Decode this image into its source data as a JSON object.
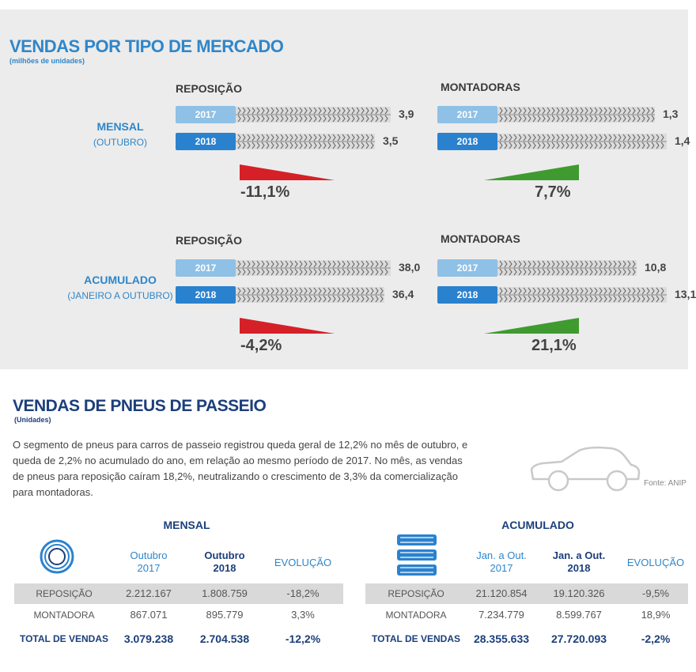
{
  "market": {
    "title": "VENDAS POR TIPO DE MERCADO",
    "unit": "(milhões de unidades)",
    "panels": [
      {
        "row": "MENSAL",
        "row_sub": "(OUTUBRO)",
        "left_title": "REPOSIÇÃO",
        "right_title": "MONTADORAS"
      },
      {
        "row": "ACUMULADO",
        "row_sub": "(JANEIRO A OUTUBRO)",
        "left_title": "REPOSIÇÃO",
        "right_title": "MONTADORAS"
      }
    ],
    "year_labels": [
      "2017",
      "2018"
    ],
    "value_labels": {
      "mensal_repos": [
        "3,9",
        "3,5"
      ],
      "mensal_mont": [
        "1,3",
        "1,4"
      ],
      "acum_repos": [
        "38,0",
        "36,4"
      ],
      "acum_mont": [
        "10,8",
        "13,1"
      ]
    },
    "change_labels": {
      "mensal_repos": "-11,1%",
      "mensal_mont": "7,7%",
      "acum_repos": "-4,2%",
      "acum_mont": "21,1%"
    },
    "colors": {
      "y2017": "#8fc0e6",
      "y2018": "#2a82cf",
      "down": "#d62027",
      "up": "#3f9b2f"
    }
  },
  "chart_data": [
    {
      "type": "bar",
      "title": "REPOSIÇÃO",
      "categories": [
        "2017",
        "2018"
      ],
      "values": [
        3.9,
        3.5
      ],
      "change": -11.1,
      "ylabel": ""
    },
    {
      "type": "bar",
      "title": "MONTADORAS",
      "categories": [
        "2017",
        "2018"
      ],
      "values": [
        1.3,
        1.4
      ],
      "change": 7.7
    },
    {
      "type": "bar",
      "title": "REPOSIÇÃO",
      "categories": [
        "2017",
        "2018"
      ],
      "values": [
        38.0,
        36.4
      ],
      "change": -4.2
    },
    {
      "type": "bar",
      "title": "MONTADORAS",
      "categories": [
        "2017",
        "2018"
      ],
      "values": [
        10.8,
        13.1
      ],
      "change": 21.1
    }
  ],
  "passeio": {
    "title": "VENDAS DE PNEUS DE PASSEIO",
    "unit": "(Unidades)",
    "paragraph": [
      "O segmento de pneus para carros de passeio registrou queda geral de 12,2% no mês de outubro, e",
      "queda de 2,2% no acumulado do ano, em relação ao mesmo período de 2017. No mês, as vendas",
      "de pneus para reposição caíram 18,2%, neutralizando o crescimento de 3,3% da comercialização",
      "para montadoras."
    ],
    "fonte": "Fonte: ANIP"
  },
  "tables": {
    "mensal": {
      "title": "MENSAL",
      "headers": [
        [
          "Outubro",
          "2017"
        ],
        [
          "Outubro",
          "2018"
        ],
        [
          "EVOLUÇÃO"
        ]
      ],
      "rows": [
        {
          "label": "REPOSIÇÃO",
          "values": [
            "2.212.167",
            "1.808.759",
            "-18,2%"
          ]
        },
        {
          "label": "MONTADORA",
          "values": [
            "867.071",
            "895.779",
            "3,3%"
          ]
        },
        {
          "label": "TOTAL DE VENDAS",
          "values": [
            "3.079.238",
            "2.704.538",
            "-12,2%"
          ]
        }
      ]
    },
    "acumulado": {
      "title": "ACUMULADO",
      "headers": [
        [
          "Jan. a Out.",
          "2017"
        ],
        [
          "Jan. a Out.",
          "2018"
        ],
        [
          "EVOLUÇÃO"
        ]
      ],
      "rows": [
        {
          "label": "REPOSIÇÃO",
          "values": [
            "21.120.854",
            "19.120.326",
            "-9,5%"
          ]
        },
        {
          "label": "MONTADORA",
          "values": [
            "7.234.779",
            "8.599.767",
            "18,9%"
          ]
        },
        {
          "label": "TOTAL DE VENDAS",
          "values": [
            "28.355.633",
            "27.720.093",
            "-2,2%"
          ]
        }
      ]
    }
  }
}
